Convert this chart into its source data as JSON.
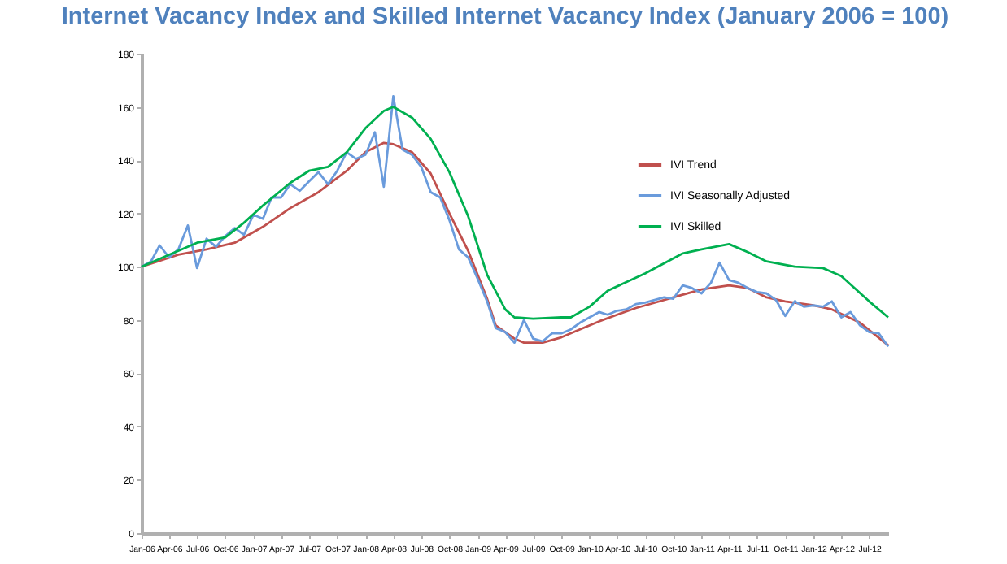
{
  "chart_data": {
    "type": "line",
    "title": "Internet Vacancy Index and Skilled Internet Vacancy Index (January 2006 = 100)",
    "x": [
      "2006-01",
      "2006-02",
      "2006-03",
      "2006-04",
      "2006-05",
      "2006-06",
      "2006-07",
      "2006-08",
      "2006-09",
      "2006-10",
      "2006-11",
      "2006-12",
      "2007-01",
      "2007-02",
      "2007-03",
      "2007-04",
      "2007-05",
      "2007-06",
      "2007-07",
      "2007-08",
      "2007-09",
      "2007-10",
      "2007-11",
      "2007-12",
      "2008-01",
      "2008-02",
      "2008-03",
      "2008-04",
      "2008-05",
      "2008-06",
      "2008-07",
      "2008-08",
      "2008-09",
      "2008-10",
      "2008-11",
      "2008-12",
      "2009-01",
      "2009-02",
      "2009-03",
      "2009-04",
      "2009-05",
      "2009-06",
      "2009-07",
      "2009-08",
      "2009-09",
      "2009-10",
      "2009-11",
      "2009-12",
      "2010-01",
      "2010-02",
      "2010-03",
      "2010-04",
      "2010-05",
      "2010-06",
      "2010-07",
      "2010-08",
      "2010-09",
      "2010-10",
      "2010-11",
      "2010-12",
      "2011-01",
      "2011-02",
      "2011-03",
      "2011-04",
      "2011-05",
      "2011-06",
      "2011-07",
      "2011-08",
      "2011-09",
      "2011-10",
      "2011-11",
      "2011-12",
      "2012-01",
      "2012-02",
      "2012-03",
      "2012-04",
      "2012-05",
      "2012-06",
      "2012-07",
      "2012-08",
      "2012-09"
    ],
    "series": [
      {
        "name": "IVI Trend",
        "color": "#c0504d",
        "x": [
          "2006-01",
          "2006-05",
          "2006-08",
          "2006-11",
          "2007-02",
          "2007-05",
          "2007-08",
          "2007-11",
          "2008-01",
          "2008-03",
          "2008-04",
          "2008-06",
          "2008-08",
          "2008-10",
          "2008-12",
          "2009-02",
          "2009-03",
          "2009-05",
          "2009-06",
          "2009-08",
          "2009-10",
          "2009-12",
          "2010-02",
          "2010-04",
          "2010-06",
          "2010-08",
          "2010-10",
          "2011-01",
          "2011-04",
          "2011-06",
          "2011-08",
          "2011-10",
          "2012-01",
          "2012-03",
          "2012-06",
          "2012-09"
        ],
        "values": [
          100,
          104.5,
          106.5,
          109,
          115,
          122,
          128,
          136,
          143,
          146.5,
          146,
          143,
          135,
          120,
          106,
          88,
          78,
          73,
          71.5,
          71.5,
          73.5,
          76.5,
          79.5,
          82,
          84.5,
          86.5,
          88.5,
          91.5,
          93,
          92,
          88.5,
          87,
          85.5,
          84,
          79,
          70.5
        ]
      },
      {
        "name": "IVI Seasonally Adjusted",
        "color": "#6a9bdc",
        "values": [
          100,
          102,
          108,
          103.5,
          106.5,
          115.5,
          99.5,
          110.5,
          107.5,
          111.5,
          114.5,
          112,
          119.5,
          118,
          126,
          126,
          131,
          128.5,
          132,
          135.5,
          131,
          136,
          143,
          140.5,
          142,
          150.5,
          130,
          164,
          144,
          142,
          137.5,
          128,
          126,
          117.5,
          106.5,
          103.5,
          95.5,
          87,
          77,
          75.5,
          71.5,
          80,
          73,
          72,
          75,
          75,
          76.5,
          79,
          81,
          83,
          82,
          83.5,
          84,
          86,
          86.5,
          87.5,
          88.5,
          88,
          93,
          92,
          90,
          94,
          101.5,
          95,
          94,
          92,
          90.5,
          90,
          87.5,
          81.5,
          87,
          85,
          85.5,
          85,
          87,
          81,
          83,
          78,
          75.5,
          75,
          70
        ]
      },
      {
        "name": "IVI Skilled",
        "color": "#00b050",
        "x": [
          "2006-01",
          "2006-04",
          "2006-07",
          "2006-10",
          "2006-12",
          "2007-02",
          "2007-05",
          "2007-07",
          "2007-09",
          "2007-11",
          "2008-01",
          "2008-03",
          "2008-04",
          "2008-06",
          "2008-08",
          "2008-10",
          "2008-12",
          "2009-02",
          "2009-04",
          "2009-05",
          "2009-07",
          "2009-10",
          "2009-11",
          "2010-01",
          "2010-03",
          "2010-07",
          "2010-11",
          "2011-01",
          "2011-04",
          "2011-06",
          "2011-08",
          "2011-11",
          "2012-02",
          "2012-04",
          "2012-07",
          "2012-09"
        ],
        "values": [
          100,
          104.5,
          109,
          111,
          116.5,
          123,
          131.5,
          136,
          137.5,
          143,
          152,
          158.5,
          160,
          156,
          148,
          135.5,
          119,
          97,
          84,
          81,
          80.5,
          81,
          81,
          85,
          91,
          97.5,
          105,
          106.5,
          108.5,
          105.5,
          102,
          100,
          99.5,
          96.5,
          87,
          81
        ]
      }
    ],
    "ylim": [
      0,
      180
    ],
    "yticks": [
      0,
      20,
      40,
      60,
      80,
      100,
      120,
      140,
      160,
      180
    ],
    "xlim": [
      "2006-01",
      "2012-09"
    ],
    "xticks": [
      {
        "value": "2006-01",
        "label": "Jan-06"
      },
      {
        "value": "2006-04",
        "label": "Apr-06"
      },
      {
        "value": "2006-07",
        "label": "Jul-06"
      },
      {
        "value": "2006-10",
        "label": "Oct-06"
      },
      {
        "value": "2007-01",
        "label": "Jan-07"
      },
      {
        "value": "2007-04",
        "label": "Apr-07"
      },
      {
        "value": "2007-07",
        "label": "Jul-07"
      },
      {
        "value": "2007-10",
        "label": "Oct-07"
      },
      {
        "value": "2008-01",
        "label": "Jan-08"
      },
      {
        "value": "2008-04",
        "label": "Apr-08"
      },
      {
        "value": "2008-07",
        "label": "Jul-08"
      },
      {
        "value": "2008-10",
        "label": "Oct-08"
      },
      {
        "value": "2009-01",
        "label": "Jan-09"
      },
      {
        "value": "2009-04",
        "label": "Apr-09"
      },
      {
        "value": "2009-07",
        "label": "Jul-09"
      },
      {
        "value": "2009-10",
        "label": "Oct-09"
      },
      {
        "value": "2010-01",
        "label": "Jan-10"
      },
      {
        "value": "2010-04",
        "label": "Apr-10"
      },
      {
        "value": "2010-07",
        "label": "Jul-10"
      },
      {
        "value": "2010-10",
        "label": "Oct-10"
      },
      {
        "value": "2011-01",
        "label": "Jan-11"
      },
      {
        "value": "2011-04",
        "label": "Apr-11"
      },
      {
        "value": "2011-07",
        "label": "Jul-11"
      },
      {
        "value": "2011-10",
        "label": "Oct-11"
      },
      {
        "value": "2012-01",
        "label": "Jan-12"
      },
      {
        "value": "2012-04",
        "label": "Apr-12"
      },
      {
        "value": "2012-07",
        "label": "Jul-12"
      }
    ],
    "grid": false,
    "legend": "top right",
    "line_style": "solid",
    "marker": "none"
  }
}
